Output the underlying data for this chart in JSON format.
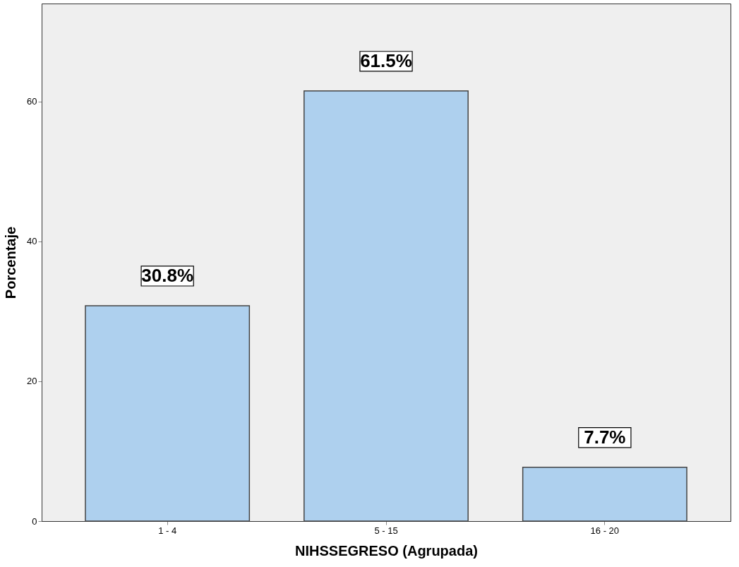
{
  "chart_data": {
    "type": "bar",
    "xlabel": "NIHSSEGRESO (Agrupada)",
    "ylabel": "Porcentaje",
    "categories": [
      "1 - 4",
      "5 - 15",
      "16 - 20"
    ],
    "values": [
      30.8,
      61.5,
      7.7
    ],
    "value_labels": [
      "30.8%",
      "61.5%",
      "7.7%"
    ],
    "color": "#aed0ee",
    "ylim": [
      0,
      74
    ],
    "yticks": [
      0,
      20,
      40,
      60
    ],
    "grid": false
  }
}
